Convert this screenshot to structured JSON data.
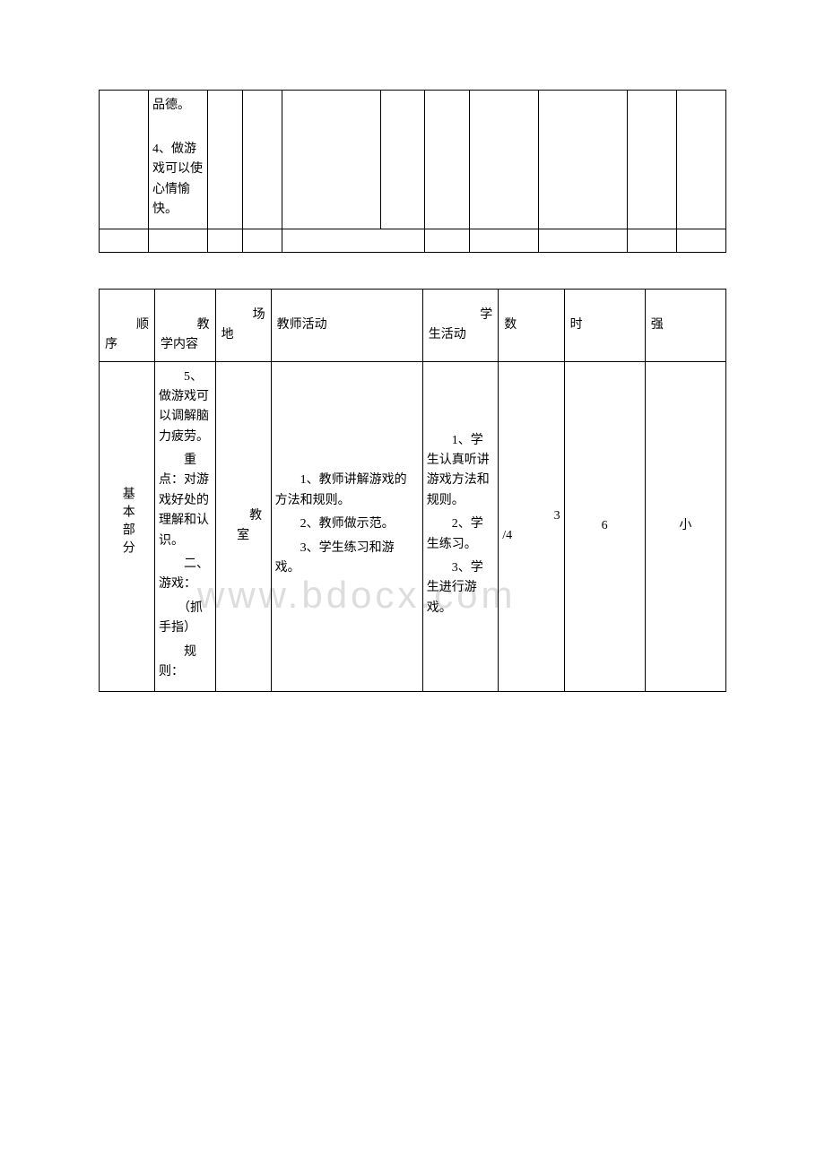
{
  "watermark": "www.bdocx.com",
  "table1": {
    "row1": {
      "content_a": "品德。",
      "content_b": "　　4、做游戏可以使心情愉快。"
    }
  },
  "table2": {
    "headers": {
      "col0": "顺序",
      "col1": "教学内容",
      "col2": "场地",
      "col3": "教师活动",
      "col4": "学生活动",
      "col5": "数",
      "col6": "时",
      "col7": "强"
    },
    "body": {
      "col0": "基本部分",
      "col1_a": "　　5、做游戏可以调解脑力疲劳。",
      "col1_b": "　　重点：对游戏好处的理解和认识。",
      "col1_c": "　　二、游戏：",
      "col1_d": "　　（抓手指）",
      "col1_e": "　　规则：",
      "col2": "教室",
      "col3_a": "　　1、教师讲解游戏的方法和规则。",
      "col3_b": "　　2、教师做示范。",
      "col3_c": "　　3、学生练习和游戏。",
      "col4_a": "　　1、学生认真听讲游戏方法和规则。",
      "col4_b": "　　2、学生练习。",
      "col4_c": "　　3、学生进行游戏。",
      "col5_a": "3",
      "col5_b": "/4",
      "col6": "6",
      "col7": "小"
    }
  }
}
